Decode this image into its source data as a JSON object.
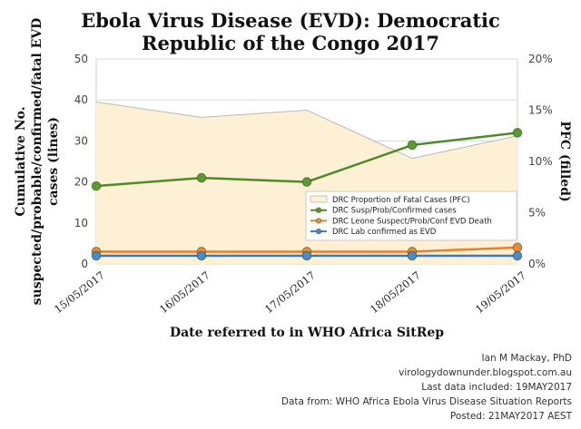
{
  "chart_data": {
    "type": "line",
    "title_lines": [
      "Ebola Virus Disease (EVD): Democratic",
      "Republic of the Congo 2017"
    ],
    "xlabel": "Date referred to in WHO Africa SitRep",
    "ylabel_lines": [
      "Cumulative No.",
      "suspected/probable/confirmed/fatal EVD",
      "cases (lines)"
    ],
    "y2label": "PFC (filled)",
    "categories": [
      "15/05/2017",
      "16/05/2017",
      "17/05/2017",
      "18/05/2017",
      "19/05/2017"
    ],
    "ylim": [
      0,
      50
    ],
    "yticks": [
      0,
      10,
      20,
      30,
      40,
      50
    ],
    "y2lim": [
      0,
      20
    ],
    "y2ticks": [
      0,
      5,
      10,
      15,
      20
    ],
    "y2tick_labels": [
      "0%",
      "5%",
      "10%",
      "15%",
      "20%"
    ],
    "grid": true,
    "legend_position": "lower-right",
    "area_series": {
      "name": "DRC Proportion of Fatal Cases (PFC)",
      "axis": "right",
      "values": [
        15.8,
        14.3,
        15.0,
        10.3,
        12.5
      ],
      "fill_color": "#fdf0d5",
      "stroke_color": "#b9b9b9"
    },
    "series": [
      {
        "name": "DRC Susp/Prob/Confirmed cases",
        "values": [
          19,
          21,
          20,
          29,
          32
        ],
        "color": "#4e8b27",
        "marker_color": "#5d9933"
      },
      {
        "name": "DRC Leone Suspect/Prob/Conf EVD Death",
        "values": [
          3,
          3,
          3,
          3,
          4
        ],
        "color": "#e97d2e",
        "marker_color": "#ec8a3a"
      },
      {
        "name": "DRC Lab confirmed as EVD",
        "values": [
          2,
          2,
          2,
          2,
          2
        ],
        "color": "#3a79b8",
        "marker_color": "#4a8ac9"
      }
    ]
  },
  "credits": [
    "Ian M Mackay, PhD",
    "virologydownunder.blogspot.com.au",
    "Last data included: 19MAY2017",
    "Data from: WHO Africa Ebola Virus Disease Situation Reports",
    "Posted: 21MAY2017 AEST"
  ]
}
